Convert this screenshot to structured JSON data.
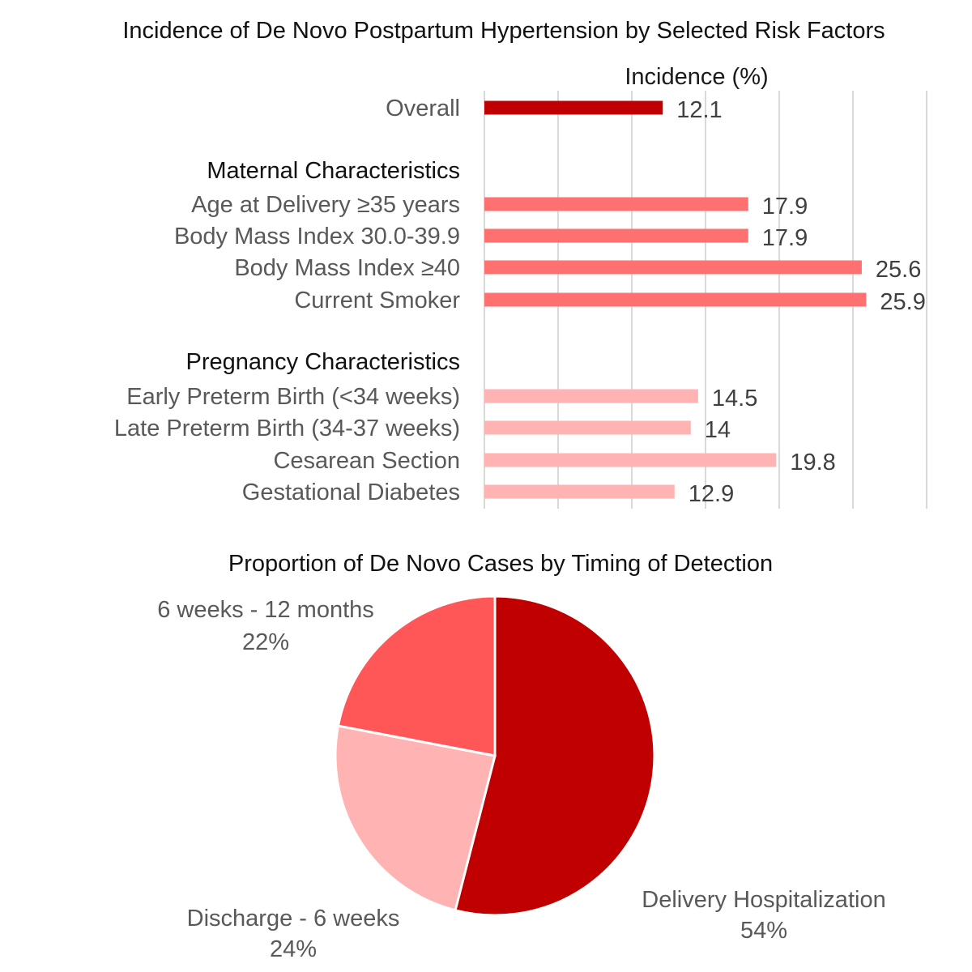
{
  "chart_data": [
    {
      "type": "bar",
      "orientation": "horizontal",
      "title": "Incidence of De Novo Postpartum Hypertension by Selected Risk Factors",
      "xlabel": "Incidence (%)",
      "xlim": [
        0,
        30
      ],
      "grid": true,
      "rows": [
        {
          "kind": "bar",
          "label": "Overall",
          "value": 12.1,
          "value_label": "12.1",
          "color": "#c00000"
        },
        {
          "kind": "heading",
          "label": "Maternal Characteristics"
        },
        {
          "kind": "bar",
          "label": "Age at Delivery ≥35 years",
          "value": 17.9,
          "value_label": "17.9",
          "color": "#ff7070"
        },
        {
          "kind": "bar",
          "label": "Body Mass Index 30.0-39.9",
          "value": 17.9,
          "value_label": "17.9",
          "color": "#ff7070"
        },
        {
          "kind": "bar",
          "label": "Body Mass Index ≥40",
          "value": 25.6,
          "value_label": "25.6",
          "color": "#ff7070"
        },
        {
          "kind": "bar",
          "label": "Current Smoker",
          "value": 25.9,
          "value_label": "25.9",
          "color": "#ff7070"
        },
        {
          "kind": "heading",
          "label": "Pregnancy Characteristics"
        },
        {
          "kind": "bar",
          "label": "Early Preterm Birth (<34 weeks)",
          "value": 14.5,
          "value_label": "14.5",
          "color": "#ffb3b3"
        },
        {
          "kind": "bar",
          "label": "Late Preterm Birth (34-37 weeks)",
          "value": 14,
          "value_label": "14",
          "color": "#ffb3b3"
        },
        {
          "kind": "bar",
          "label": "Cesarean Section",
          "value": 19.8,
          "value_label": "19.8",
          "color": "#ffb3b3"
        },
        {
          "kind": "bar",
          "label": "Gestational Diabetes",
          "value": 12.9,
          "value_label": "12.9",
          "color": "#ffb3b3"
        }
      ]
    },
    {
      "type": "pie",
      "title": "Proportion of De Novo Cases by Timing of Detection",
      "start": "top",
      "direction": "clockwise",
      "slices": [
        {
          "label": "Delivery Hospitalization",
          "value": 54,
          "value_label": "54%",
          "color": "#c00000"
        },
        {
          "label": "Discharge - 6 weeks",
          "value": 24,
          "value_label": "24%",
          "color": "#ffb3b3"
        },
        {
          "label": "6 weeks - 12 months",
          "value": 22,
          "value_label": "22%",
          "color": "#ff5757"
        }
      ]
    }
  ]
}
